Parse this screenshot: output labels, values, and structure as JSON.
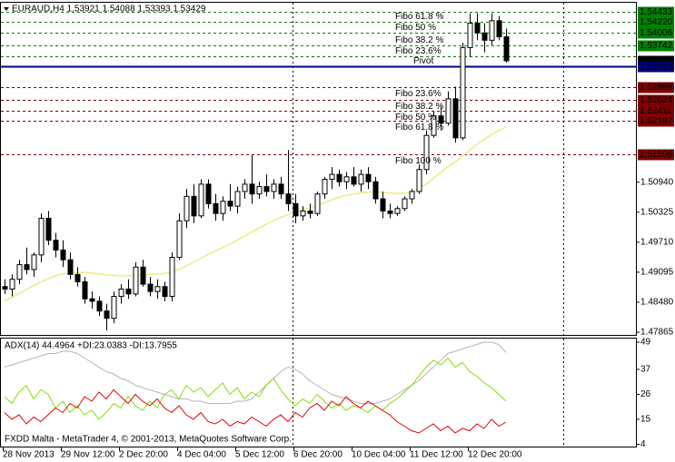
{
  "chart_data": [
    {
      "type": "candlestick",
      "title": "EURAUD,H4 1.53921 1.54088 1.53393 1.53429",
      "categories": [
        "28 Nov 2013",
        null,
        null,
        null,
        null,
        null,
        null,
        null,
        "29 Nov 12:00",
        null,
        null,
        null,
        null,
        null,
        null,
        null,
        "2 Dec 20:00",
        null,
        null,
        null,
        null,
        null,
        null,
        null,
        "4 Dec 04:00",
        null,
        null,
        null,
        null,
        null,
        null,
        null,
        "5 Dec 12:00",
        null,
        null,
        null,
        null,
        null,
        null,
        null,
        "6 Dec 20:00",
        null,
        null,
        null,
        null,
        null,
        null,
        null,
        "10 Dec 04:00",
        null,
        null,
        null,
        null,
        null,
        null,
        null,
        "11 Dec 12:00",
        null,
        null,
        null,
        null,
        null,
        null,
        null,
        "12 Dec 20:00",
        null,
        null,
        null,
        null,
        null
      ],
      "open": [
        1.488,
        1.4875,
        1.4895,
        1.4925,
        1.4915,
        1.4945,
        1.502,
        1.4975,
        1.4955,
        1.4935,
        1.4905,
        1.489,
        1.4855,
        1.485,
        1.483,
        1.4815,
        1.486,
        1.4875,
        1.4865,
        1.492,
        1.4885,
        1.487,
        1.488,
        1.486,
        1.494,
        1.5015,
        1.5065,
        1.5025,
        1.509,
        1.505,
        1.503,
        1.5055,
        1.5045,
        1.5075,
        1.509,
        1.507,
        1.5085,
        1.5075,
        1.509,
        1.507,
        1.505,
        1.5025,
        1.5035,
        1.503,
        1.507,
        1.51,
        1.511,
        1.5095,
        1.5105,
        1.509,
        1.511,
        1.5095,
        1.506,
        1.5035,
        1.503,
        1.504,
        1.506,
        1.5075,
        1.512,
        1.519,
        1.523,
        1.5215,
        1.5265,
        1.5185,
        1.537,
        1.542,
        1.54,
        1.5385,
        1.5425,
        1.53921
      ],
      "high": [
        1.4895,
        1.4905,
        1.4935,
        1.496,
        1.495,
        1.503,
        1.5035,
        1.499,
        1.4975,
        1.495,
        1.492,
        1.49,
        1.487,
        1.486,
        1.4845,
        1.487,
        1.4885,
        1.4895,
        1.493,
        1.4935,
        1.49,
        1.4895,
        1.489,
        1.495,
        1.503,
        1.508,
        1.509,
        1.51,
        1.51,
        1.507,
        1.5065,
        1.509,
        1.5085,
        1.51,
        1.515,
        1.5095,
        1.511,
        1.51,
        1.5105,
        1.516,
        1.507,
        1.5045,
        1.505,
        1.5075,
        1.5105,
        1.5125,
        1.512,
        1.5115,
        1.5125,
        1.512,
        1.5125,
        1.5105,
        1.5075,
        1.505,
        1.5045,
        1.5065,
        1.508,
        1.513,
        1.52,
        1.524,
        1.525,
        1.528,
        1.529,
        1.538,
        1.544,
        1.544,
        1.542,
        1.544,
        1.5435,
        1.54088
      ],
      "low": [
        1.4865,
        1.486,
        1.4885,
        1.4905,
        1.49,
        1.493,
        1.4965,
        1.494,
        1.492,
        1.4895,
        1.488,
        1.4845,
        1.4835,
        1.482,
        1.479,
        1.4805,
        1.4845,
        1.4855,
        1.486,
        1.488,
        1.486,
        1.4855,
        1.485,
        1.485,
        1.4935,
        1.5,
        1.501,
        1.502,
        1.504,
        1.5015,
        1.5015,
        1.5035,
        1.503,
        1.506,
        1.505,
        1.506,
        1.5065,
        1.506,
        1.506,
        1.5035,
        1.501,
        1.5015,
        1.502,
        1.5025,
        1.506,
        1.508,
        1.5085,
        1.508,
        1.5085,
        1.5075,
        1.508,
        1.505,
        1.502,
        1.502,
        1.5025,
        1.5035,
        1.505,
        1.507,
        1.511,
        1.5185,
        1.52,
        1.521,
        1.5175,
        1.518,
        1.535,
        1.5385,
        1.536,
        1.5375,
        1.5385,
        1.53393
      ],
      "close": [
        1.4875,
        1.4895,
        1.4925,
        1.4915,
        1.4945,
        1.502,
        1.4975,
        1.4955,
        1.4935,
        1.4905,
        1.489,
        1.4855,
        1.485,
        1.483,
        1.4815,
        1.486,
        1.4875,
        1.4865,
        1.492,
        1.4885,
        1.487,
        1.488,
        1.486,
        1.494,
        1.5015,
        1.5065,
        1.5025,
        1.509,
        1.505,
        1.503,
        1.5055,
        1.5045,
        1.5075,
        1.509,
        1.507,
        1.5085,
        1.5075,
        1.509,
        1.507,
        1.505,
        1.5025,
        1.5035,
        1.503,
        1.507,
        1.51,
        1.511,
        1.5095,
        1.5105,
        1.509,
        1.511,
        1.5095,
        1.506,
        1.5035,
        1.503,
        1.504,
        1.506,
        1.5075,
        1.512,
        1.519,
        1.523,
        1.5215,
        1.5265,
        1.5185,
        1.537,
        1.542,
        1.54,
        1.5385,
        1.5425,
        1.5392,
        1.53429
      ],
      "up_color": "#ffffff",
      "down_color": "#000000",
      "wick_color": "#000000",
      "overlay": {
        "color": "#f0ea80",
        "values": [
          1.485,
          1.4858,
          1.4866,
          1.4874,
          1.4882,
          1.489,
          1.4896,
          1.4902,
          1.4906,
          1.4908,
          1.4909,
          1.4909,
          1.4908,
          1.4906,
          1.4904,
          1.4903,
          1.4902,
          1.4902,
          1.4903,
          1.4904,
          1.4905,
          1.4906,
          1.4907,
          1.491,
          1.4915,
          1.4922,
          1.493,
          1.4938,
          1.4946,
          1.4953,
          1.496,
          1.4967,
          1.4975,
          1.4983,
          1.4992,
          1.5,
          1.5008,
          1.5015,
          1.5022,
          1.5028,
          1.5033,
          1.5037,
          1.5041,
          1.5046,
          1.5052,
          1.5058,
          1.5063,
          1.5067,
          1.507,
          1.5072,
          1.5074,
          1.5074,
          1.5073,
          1.5072,
          1.5071,
          1.5072,
          1.5074,
          1.508,
          1.509,
          1.5102,
          1.5114,
          1.5126,
          1.5135,
          1.5147,
          1.516,
          1.5172,
          1.5182,
          1.5192,
          1.52,
          1.5208
        ]
      },
      "ylim": [
        1.47791,
        1.54638
      ],
      "yticks": [
        {
          "value": 1.5094,
          "label": "1.50940"
        },
        {
          "value": 1.50325,
          "label": "1.50325"
        },
        {
          "value": 1.4971,
          "label": "1.49710"
        },
        1.49095,
        {
          "value": 1.4848,
          "label": "1.48480"
        },
        1.47865
      ],
      "levels": [
        {
          "value": 1.54433,
          "label": "1.54433",
          "color": "#008000",
          "style": "dash"
        },
        {
          "value": 1.5422,
          "label": "1.54220",
          "text": "Fibo 61.8 %",
          "color": "#008000",
          "style": "dash"
        },
        {
          "value": 1.54006,
          "label": "1.54006",
          "text": "Fibo 50 %",
          "color": "#008000",
          "style": "dash"
        },
        {
          "value": 1.53742,
          "label": "1.53742",
          "text": "Fibo 38.2 %",
          "color": "#008000",
          "style": "dash"
        },
        {
          "value": 1.5352,
          "text": "Fibo 23.6%",
          "color": "#008000",
          "style": "dash"
        },
        {
          "value": 1.53429,
          "label": "1.53429",
          "color": "#000000",
          "style": "none"
        },
        {
          "value": 1.53315,
          "label": "1.53315",
          "text": "Pivot",
          "color": "#000080",
          "style": "solid"
        },
        {
          "value": 1.52888,
          "label": "1.52888",
          "text": "Fibo 23.6%",
          "color": "#800000",
          "style": "dash"
        },
        {
          "value": 1.52624,
          "label": "1.52624",
          "text": "Fibo 38.2 %",
          "color": "#800000",
          "style": "dash"
        },
        {
          "value": 1.52411,
          "label": "1.52411",
          "text": "Fibo 50 %",
          "color": "#800000",
          "style": "dash"
        },
        {
          "value": 1.52197,
          "label": "1.52197",
          "text": "Fibo 61.8 %",
          "color": "#800000",
          "style": "dash"
        },
        {
          "value": 1.51506,
          "label": "1.51506",
          "text": "Fibo 100 %",
          "color": "#800000",
          "style": "dash"
        }
      ]
    },
    {
      "type": "line",
      "title": "ADX(14) 44.4964 +DI:23.0383 -DI:13.7955",
      "footer": "FXDD Malta - MetaTrader 4, © 2001-2013, MetaQuotes Software Corp.",
      "series": [
        {
          "color": "#b4b4b4",
          "values": [
            38,
            39,
            40,
            41,
            42,
            43,
            44,
            44,
            45,
            45,
            44,
            42,
            40,
            38,
            36,
            35,
            33,
            32,
            30,
            29,
            28,
            27,
            26,
            25,
            24,
            24,
            23,
            23,
            22,
            22,
            22,
            22,
            23,
            23,
            24,
            27,
            30,
            33,
            36,
            38,
            37,
            35,
            32,
            30,
            28,
            26,
            25,
            24,
            23,
            22,
            22,
            22,
            23,
            24,
            26,
            28,
            30,
            32,
            35,
            38,
            41,
            44,
            45,
            46,
            47,
            48,
            49,
            49,
            48,
            44.4964
          ]
        },
        {
          "color": "#7fe000",
          "values": [
            25,
            22,
            27,
            30,
            24,
            28,
            26,
            20,
            23,
            18,
            21,
            17,
            19,
            15,
            18,
            22,
            20,
            25,
            21,
            19,
            23,
            20,
            26,
            28,
            24,
            30,
            27,
            29,
            25,
            28,
            31,
            26,
            29,
            24,
            27,
            25,
            30,
            33,
            28,
            24,
            21,
            24,
            22,
            26,
            23,
            20,
            22,
            19,
            21,
            20,
            18,
            21,
            19,
            22,
            24,
            27,
            30,
            34,
            38,
            41,
            39,
            42,
            38,
            40,
            36,
            34,
            31,
            29,
            26,
            23.0383
          ]
        },
        {
          "color": "#e00000",
          "values": [
            18,
            15,
            17,
            13,
            16,
            14,
            17,
            20,
            18,
            22,
            20,
            25,
            23,
            27,
            24,
            28,
            25,
            22,
            26,
            23,
            21,
            24,
            20,
            18,
            21,
            17,
            15,
            18,
            14,
            13,
            15,
            12,
            14,
            13,
            16,
            14,
            12,
            15,
            17,
            14,
            18,
            16,
            20,
            22,
            19,
            23,
            21,
            25,
            22,
            20,
            23,
            21,
            19,
            17,
            14,
            12,
            10,
            9,
            11,
            13,
            10,
            12,
            9,
            11,
            10,
            13,
            11,
            15,
            12,
            13.7955
          ]
        }
      ],
      "ylim": [
        3,
        51
      ],
      "yticks": [
        49,
        37,
        26,
        15,
        4
      ]
    }
  ]
}
